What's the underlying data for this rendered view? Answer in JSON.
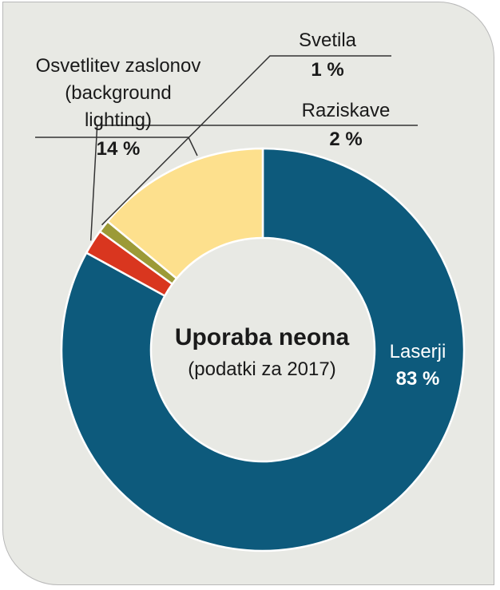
{
  "chart_data": {
    "type": "pie",
    "variant": "donut",
    "title": "Uporaba neona",
    "subtitle": "(podatki za 2017)",
    "slices": [
      {
        "label": "Laserji",
        "value": 83,
        "value_label": "83 %",
        "color": "#0d5a7c"
      },
      {
        "label": "Raziskave",
        "value": 2,
        "value_label": "2 %",
        "color": "#d9361f"
      },
      {
        "label": "Svetila",
        "value": 1,
        "value_label": "1 %",
        "color": "#9c9a37"
      },
      {
        "label_lines": [
          "Osvetlitev zaslonov",
          "(background",
          "lighting)"
        ],
        "value": 14,
        "value_label": "14 %",
        "color": "#fde08d"
      }
    ],
    "background_color": "#e8e9e4"
  }
}
